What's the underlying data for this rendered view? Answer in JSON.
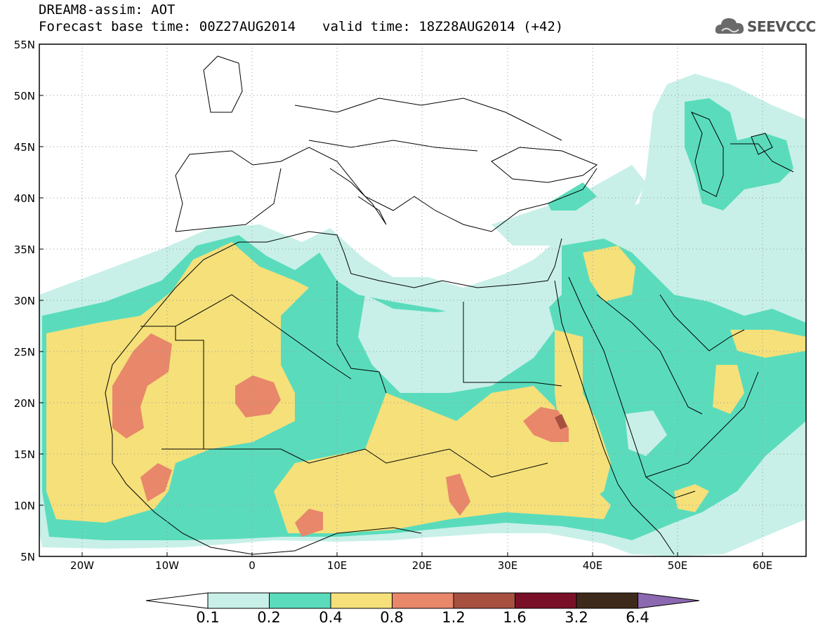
{
  "title_line1": "DREAM8-assim: AOT",
  "title_base": "Forecast base time: 00Z27AUG2014",
  "title_valid": "valid time: 18Z28AUG2014 (+42)",
  "logo_text": "SEEVCCC",
  "logo_icon": "cloud-icon",
  "lat_labels": [
    "55N",
    "50N",
    "45N",
    "40N",
    "35N",
    "30N",
    "25N",
    "20N",
    "15N",
    "10N",
    "5N"
  ],
  "lon_labels": [
    "20W",
    "10W",
    "0",
    "10E",
    "20E",
    "30E",
    "40E",
    "50E",
    "60E"
  ],
  "colorbar": {
    "labels": [
      "0.1",
      "0.2",
      "0.4",
      "0.8",
      "1.2",
      "1.6",
      "3.2",
      "6.4"
    ],
    "colors": [
      "#ffffff",
      "#c8f0e8",
      "#5adcbc",
      "#f5e07a",
      "#e8876a",
      "#a85040",
      "#7a1028",
      "#3e2a1a",
      "#8c68b0"
    ]
  }
}
